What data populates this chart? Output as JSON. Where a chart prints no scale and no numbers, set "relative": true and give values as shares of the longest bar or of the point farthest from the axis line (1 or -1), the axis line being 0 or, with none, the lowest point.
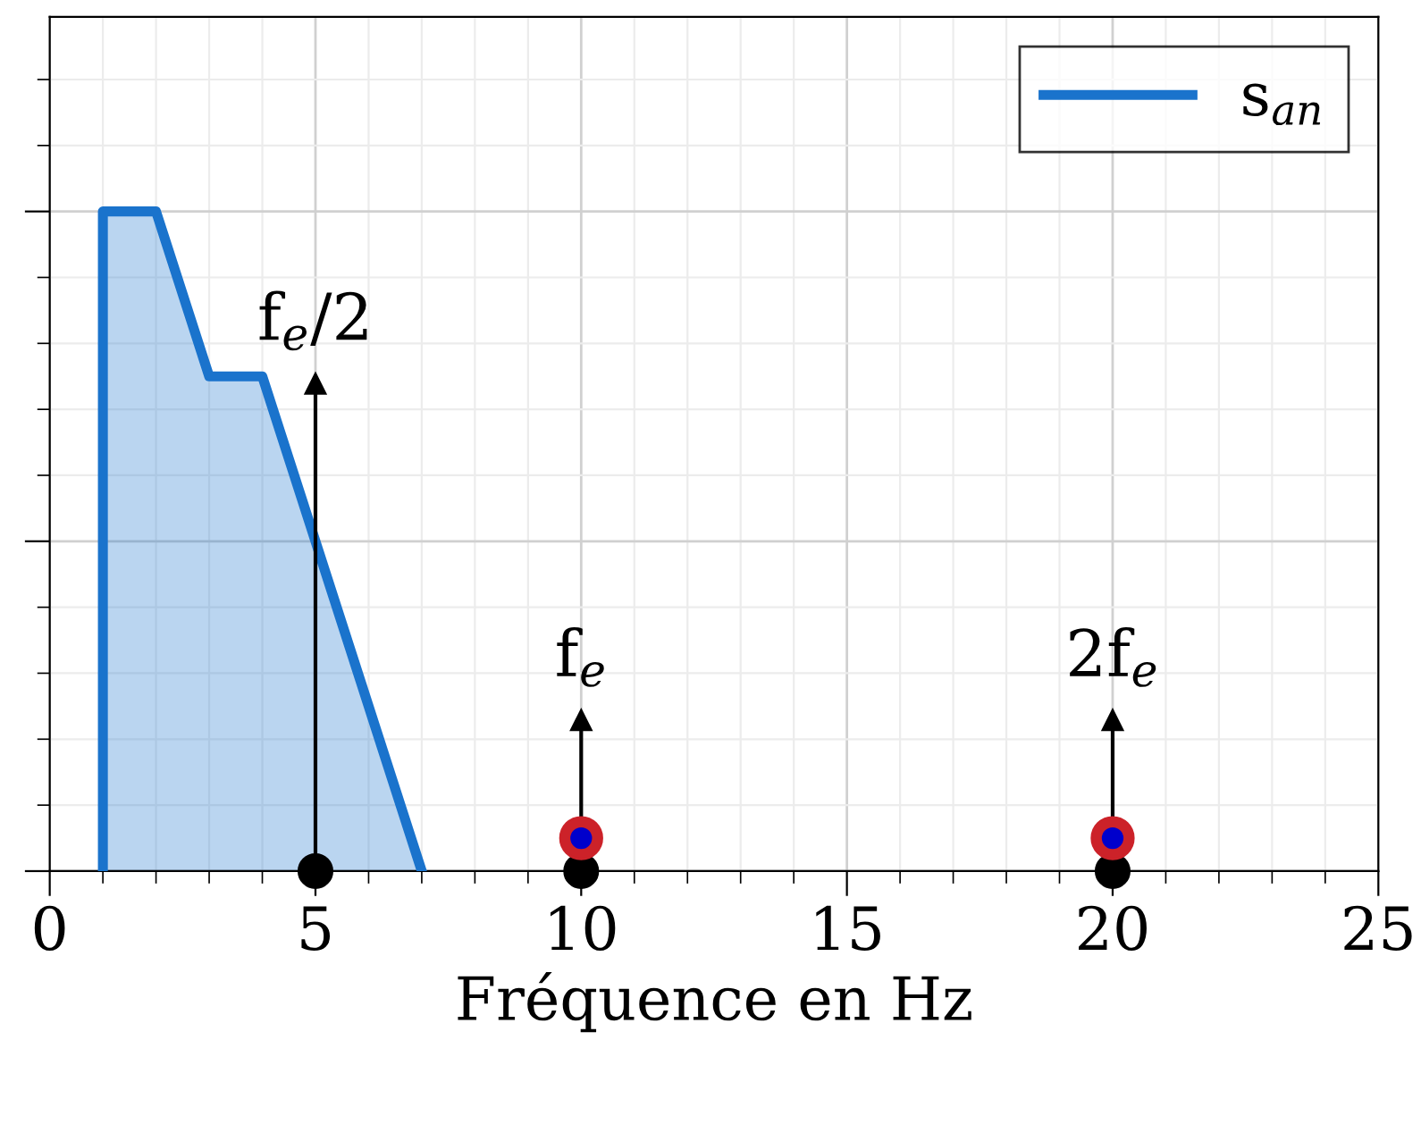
{
  "chart_data": {
    "type": "area",
    "xlabel": "Fréquence en Hz",
    "relative": true,
    "xlim": [
      0,
      25
    ],
    "xticks": [
      0,
      5,
      10,
      15,
      20,
      25
    ],
    "grid": true,
    "legend": "top right",
    "tick_labels": "x",
    "series": [
      {
        "name": "s$_{an}$",
        "color": "#1a73cc",
        "x": [
          1,
          1,
          2,
          3,
          4,
          7
        ],
        "values": [
          0,
          1,
          1,
          0.75,
          0.75,
          0
        ]
      },
      {
        "type": "lollipop",
        "color": "#000000",
        "x": [
          5,
          10,
          20
        ],
        "values": [
          0.74,
          0.23,
          0.23
        ]
      },
      {
        "type": "scatter",
        "color": "#000000",
        "x": [
          5,
          10,
          20
        ],
        "values": [
          0,
          0,
          0
        ]
      },
      {
        "type": "scatter",
        "color": "#cc2229",
        "x": [
          10,
          20
        ],
        "values": [
          0.05,
          0.05
        ]
      },
      {
        "type": "scatter",
        "color": "#0000cc",
        "x": [
          10,
          20
        ],
        "values": [
          0.05,
          0.05
        ]
      }
    ],
    "annotations": [
      "f$_{e}$/2",
      "f$_{e}$",
      "2f$_{e}$"
    ]
  }
}
